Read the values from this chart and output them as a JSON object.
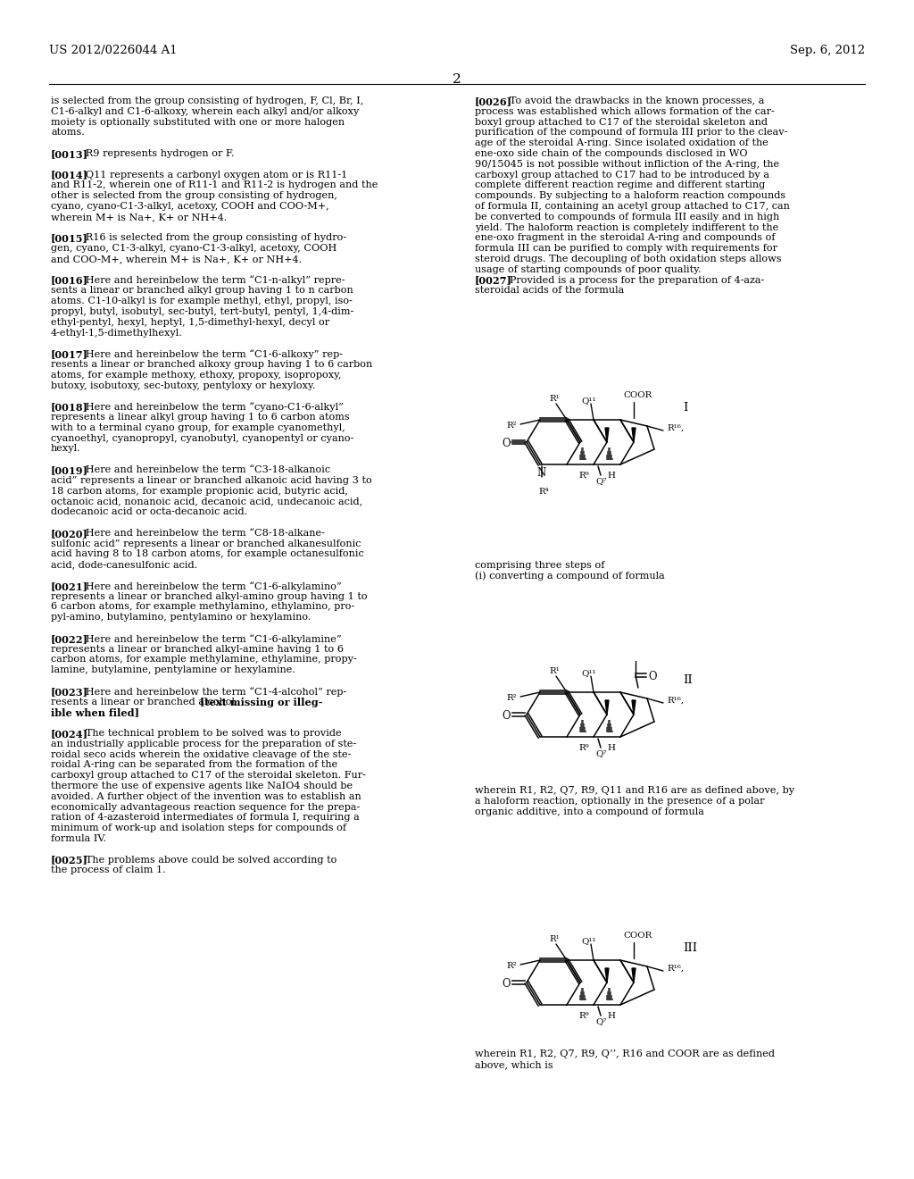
{
  "bg": "#ffffff",
  "header_left": "US 2012/0226044 A1",
  "header_right": "Sep. 6, 2012",
  "page_num": "2",
  "left_lines": [
    "is selected from the group consisting of hydrogen, F, Cl, Br, I,",
    "C1-6-alkyl and C1-6-alkoxy, wherein each alkyl and/or alkoxy",
    "moiety is optionally substituted with one or more halogen",
    "atoms.",
    "",
    "[0013]   R9 represents hydrogen or F.",
    "",
    "[0014]   Q11 represents a carbonyl oxygen atom or is R11-1",
    "and R11-2, wherein one of R11-1 and R11-2 is hydrogen and the",
    "other is selected from the group consisting of hydrogen,",
    "cyano, cyano-C1-3-alkyl, acetoxy, COOH and COO-M+,",
    "wherein M+ is Na+, K+ or NH+4.",
    "",
    "[0015]   R16 is selected from the group consisting of hydro-",
    "gen, cyano, C1-3-alkyl, cyano-C1-3-alkyl, acetoxy, COOH",
    "and COO-M+, wherein M+ is Na+, K+ or NH+4.",
    "",
    "[0016]   Here and hereinbelow the term “C1-n-alkyl” repre-",
    "sents a linear or branched alkyl group having 1 to n carbon",
    "atoms. C1-10-alkyl is for example methyl, ethyl, propyl, iso-",
    "propyl, butyl, isobutyl, sec-butyl, tert-butyl, pentyl, 1,4-dim-",
    "ethyl-pentyl, hexyl, heptyl, 1,5-dimethyl-hexyl, decyl or",
    "4-ethyl-1,5-dimethylhexyl.",
    "",
    "[0017]   Here and hereinbelow the term “C1-6-alkoxy” rep-",
    "resents a linear or branched alkoxy group having 1 to 6 carbon",
    "atoms, for example methoxy, ethoxy, propoxy, isopropoxy,",
    "butoxy, isobutoxy, sec-butoxy, pentyloxy or hexyloxy.",
    "",
    "[0018]   Here and hereinbelow the term “cyano-C1-6-alkyl”",
    "represents a linear alkyl group having 1 to 6 carbon atoms",
    "with to a terminal cyano group, for example cyanomethyl,",
    "cyanoethyl, cyanopropyl, cyanobutyl, cyanopentyl or cyano-",
    "hexyl.",
    "",
    "[0019]   Here and hereinbelow the term “C3-18-alkanoic",
    "acid” represents a linear or branched alkanoic acid having 3 to",
    "18 carbon atoms, for example propionic acid, butyric acid,",
    "octanoic acid, nonanoic acid, decanoic acid, undecanoic acid,",
    "dodecanoic acid or octa-decanoic acid.",
    "",
    "[0020]   Here and hereinbelow the term “C8-18-alkane-",
    "sulfonic acid” represents a linear or branched alkanesulfonic",
    "acid having 8 to 18 carbon atoms, for example octanesulfonic",
    "acid, dode-canesulfonic acid.",
    "",
    "[0021]   Here and hereinbelow the term “C1-6-alkylamino”",
    "represents a linear or branched alkyl-amino group having 1 to",
    "6 carbon atoms, for example methylamino, ethylamino, pro-",
    "pyl-amino, butylamino, pentylamino or hexylamino.",
    "",
    "[0022]   Here and hereinbelow the term “C1-6-alkylamine”",
    "represents a linear or branched alkyl-amine having 1 to 6",
    "carbon atoms, for example methylamine, ethylamine, propy-",
    "lamine, butylamine, pentylamine or hexylamine.",
    "",
    "[0023]   Here and hereinbelow the term “C1-4-alcohol” rep-",
    "resents a linear or branched alcohol[text missing or illeg-",
    "ible when filed]",
    "",
    "[0024]   The technical problem to be solved was to provide",
    "an industrially applicable process for the preparation of ste-",
    "roidal seco acids wherein the oxidative cleavage of the ste-",
    "roidal A-ring can be separated from the formation of the",
    "carboxyl group attached to C17 of the steroidal skeleton. Fur-",
    "thermore the use of expensive agents like NaIO4 should be",
    "avoided. A further object of the invention was to establish an",
    "economically advantageous reaction sequence for the prepa-",
    "ration of 4-azasteroid intermediates of formula I, requiring a",
    "minimum of work-up and isolation steps for compounds of",
    "formula IV.",
    "",
    "[0025]   The problems above could be solved according to",
    "the process of claim 1."
  ],
  "right_lines_top": [
    "[0026]   To avoid the drawbacks in the known processes, a",
    "process was established which allows formation of the car-",
    "boxyl group attached to C17 of the steroidal skeleton and",
    "purification of the compound of formula III prior to the cleav-",
    "age of the steroidal A-ring. Since isolated oxidation of the",
    "ene-oxo side chain of the compounds disclosed in WO",
    "90/15045 is not possible without infliction of the A-ring, the",
    "carboxyl group attached to C17 had to be introduced by a",
    "complete different reaction regime and different starting",
    "compounds. By subjecting to a haloform reaction compounds",
    "of formula II, containing an acetyl group attached to C17, can",
    "be converted to compounds of formula III easily and in high",
    "yield. The haloform reaction is completely indifferent to the",
    "ene-oxo fragment in the steroidal A-ring and compounds of",
    "formula III can be purified to comply with requirements for",
    "steroid drugs. The decoupling of both oxidation steps allows",
    "usage of starting compounds of poor quality.",
    "[0027]   Provided is a process for the preparation of 4-aza-",
    "steroidal acids of the formula"
  ],
  "right_lines_mid": [
    "comprising three steps of",
    "(i) converting a compound of formula"
  ],
  "right_lines_after_II": [
    "wherein R1, R2, Q7, R9, Q11 and R16 are as defined above, by",
    "a haloform reaction, optionally in the presence of a polar",
    "organic additive, into a compound of formula"
  ],
  "right_lines_after_III": [
    "wherein R1, R2, Q7, R9, Q’’, R16 and COOR are as defined",
    "above, which is"
  ]
}
